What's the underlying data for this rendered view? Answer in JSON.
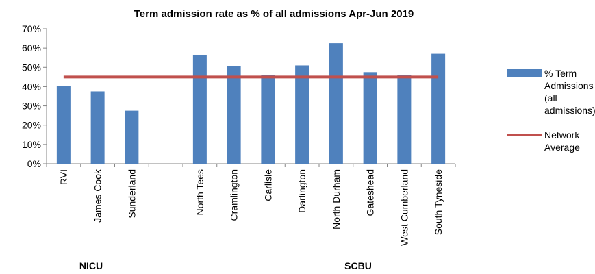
{
  "chart_data": {
    "type": "bar",
    "title": "Term admission rate as % of all admissions Apr-Jun 2019",
    "categories": [
      "RVI",
      "James Cook",
      "Sunderland",
      null,
      "North Tees",
      "Cramlington",
      "Carlisle",
      "Darlington",
      "North Durham",
      "Gateshead",
      "West Cumberland",
      "South Tyneside"
    ],
    "series": [
      {
        "name": "% Term Admissions (all admissions)",
        "type": "bar",
        "color": "#4f81bd",
        "values": [
          40.5,
          37.5,
          27.5,
          null,
          56.5,
          50.5,
          46,
          51,
          62.5,
          47.5,
          46,
          57
        ]
      },
      {
        "name": "Network Average",
        "type": "line",
        "color": "#c0504d",
        "values": [
          45,
          45,
          45,
          45,
          45,
          45,
          45,
          45,
          45,
          45,
          45,
          45
        ]
      }
    ],
    "ylim": [
      0,
      70
    ],
    "yticks": [
      {
        "value": 0,
        "label": "0%"
      },
      {
        "value": 10,
        "label": "10%"
      },
      {
        "value": 20,
        "label": "20%"
      },
      {
        "value": 30,
        "label": "30%"
      },
      {
        "value": 40,
        "label": "40%"
      },
      {
        "value": 50,
        "label": "50%"
      },
      {
        "value": 60,
        "label": "60%"
      },
      {
        "value": 70,
        "label": "70%"
      }
    ],
    "annotations": [
      "NICU",
      "SCBU"
    ],
    "legend": "right"
  }
}
